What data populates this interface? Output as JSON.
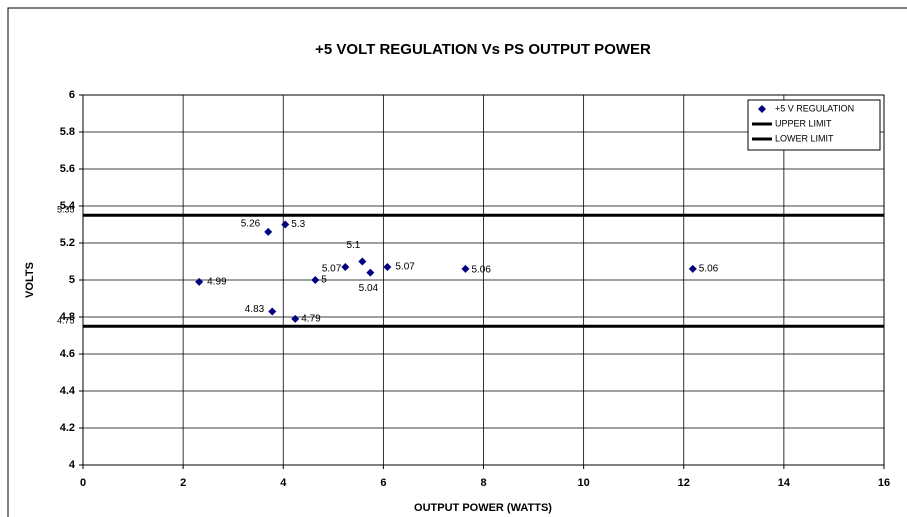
{
  "chart_data": {
    "type": "scatter",
    "title": "+5 VOLT REGULATION Vs PS OUTPUT POWER",
    "xlabel": "OUTPUT POWER (WATTS)",
    "ylabel": "VOLTS",
    "xlim": [
      0,
      16
    ],
    "xticks": [
      0,
      2,
      4,
      6,
      8,
      10,
      12,
      14,
      16
    ],
    "ylim": [
      4,
      6
    ],
    "yticks": [
      4,
      4.2,
      4.4,
      4.6,
      4.8,
      5,
      5.2,
      5.4,
      5.6,
      5.8,
      6
    ],
    "grid": true,
    "legend": "upper right",
    "series": [
      {
        "name": "+5 V REGULATION",
        "type": "scatter",
        "color": "#000080",
        "x": [
          2.32,
          3.7,
          4.04,
          3.78,
          4.24,
          4.64,
          5.24,
          5.58,
          5.74,
          6.08,
          7.64,
          12.18
        ],
        "values": [
          4.99,
          5.26,
          5.3,
          4.83,
          4.79,
          5,
          5.07,
          5.1,
          5.04,
          5.07,
          5.06,
          5.06
        ]
      },
      {
        "name": "UPPER LIMIT",
        "type": "line",
        "color": "#000000",
        "x": [
          0,
          16
        ],
        "values": [
          5.35,
          5.35
        ]
      },
      {
        "name": "LOWER LIMIT",
        "type": "line",
        "color": "#000000",
        "x": [
          0,
          16
        ],
        "values": [
          4.75,
          4.75
        ]
      }
    ]
  }
}
